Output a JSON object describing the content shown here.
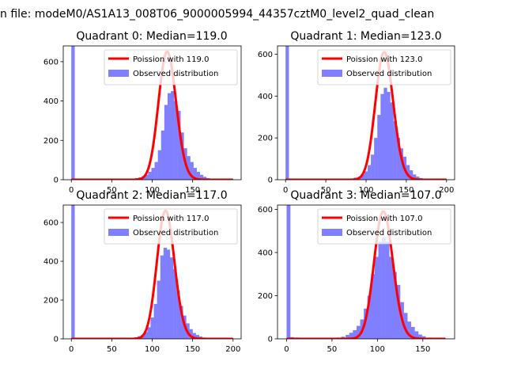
{
  "figure": {
    "suptitle": "n file: modeM0/AS1A13_008T06_9000005994_44357cztM0_level2_quad_clean"
  },
  "chart_data": [
    {
      "type": "bar",
      "title": "Quadrant 0: Median=119.0",
      "xlim": [
        -10,
        210
      ],
      "ylim": [
        0,
        680
      ],
      "xticks": [
        0,
        50,
        100,
        150
      ],
      "yticks": [
        0,
        200,
        400,
        600
      ],
      "grid": false,
      "legend_position": "top-right",
      "legend": [
        "Poission with 119.0",
        "Observed distribution"
      ],
      "colors": {
        "poisson": "#ff0000",
        "histogram": "#7f7fff"
      },
      "poisson_peak": 650,
      "series": [
        {
          "name": "Observed distribution",
          "type": "histogram",
          "bin_width": 4.2,
          "bins": [
            [
              0,
              680
            ],
            [
              55,
              2
            ],
            [
              65,
              3
            ],
            [
              75,
              5
            ],
            [
              79,
              8
            ],
            [
              83,
              12
            ],
            [
              87,
              18
            ],
            [
              91,
              25
            ],
            [
              95,
              40
            ],
            [
              99,
              60
            ],
            [
              103,
              90
            ],
            [
              107,
              150
            ],
            [
              111,
              250
            ],
            [
              115,
              380
            ],
            [
              119,
              440
            ],
            [
              123,
              450
            ],
            [
              127,
              400
            ],
            [
              131,
              350
            ],
            [
              135,
              240
            ],
            [
              139,
              160
            ],
            [
              143,
              120
            ],
            [
              147,
              90
            ],
            [
              151,
              60
            ],
            [
              155,
              40
            ],
            [
              159,
              25
            ],
            [
              163,
              15
            ],
            [
              167,
              8
            ],
            [
              175,
              3
            ],
            [
              183,
              1
            ],
            [
              195,
              1
            ]
          ]
        },
        {
          "name": "Poission with 119.0",
          "type": "line",
          "mean": 119.0,
          "x_range": [
            0,
            200
          ]
        }
      ]
    },
    {
      "type": "bar",
      "title": "Quadrant 1: Median=123.0",
      "xlim": [
        -10,
        210
      ],
      "ylim": [
        0,
        640
      ],
      "xticks": [
        0,
        50,
        100,
        150,
        200
      ],
      "yticks": [
        0,
        200,
        400,
        600
      ],
      "grid": false,
      "legend_position": "top-right",
      "legend": [
        "Poission with 123.0",
        "Observed distribution"
      ],
      "colors": {
        "poisson": "#ff0000",
        "histogram": "#7f7fff"
      },
      "poisson_peak": 610,
      "series": [
        {
          "name": "Observed distribution",
          "type": "histogram",
          "bin_width": 4.2,
          "bins": [
            [
              0,
              640
            ],
            [
              55,
              2
            ],
            [
              70,
              3
            ],
            [
              80,
              4
            ],
            [
              85,
              10
            ],
            [
              90,
              15
            ],
            [
              94,
              25
            ],
            [
              98,
              40
            ],
            [
              102,
              70
            ],
            [
              106,
              120
            ],
            [
              110,
              200
            ],
            [
              114,
              310
            ],
            [
              118,
              410
            ],
            [
              122,
              440
            ],
            [
              126,
              420
            ],
            [
              130,
              370
            ],
            [
              134,
              280
            ],
            [
              138,
              200
            ],
            [
              142,
              150
            ],
            [
              146,
              110
            ],
            [
              150,
              70
            ],
            [
              154,
              45
            ],
            [
              158,
              25
            ],
            [
              162,
              15
            ],
            [
              166,
              8
            ],
            [
              170,
              5
            ],
            [
              178,
              2
            ],
            [
              185,
              1
            ],
            [
              195,
              1
            ]
          ]
        },
        {
          "name": "Poission with 123.0",
          "type": "line",
          "mean": 123.0,
          "x_range": [
            0,
            200
          ]
        }
      ]
    },
    {
      "type": "bar",
      "title": "Quadrant 2: Median=117.0",
      "xlim": [
        -10,
        210
      ],
      "ylim": [
        0,
        690
      ],
      "xticks": [
        0,
        50,
        100,
        150,
        200
      ],
      "yticks": [
        0,
        200,
        400,
        600
      ],
      "grid": false,
      "legend_position": "top-right",
      "legend": [
        "Poission with 117.0",
        "Observed distribution"
      ],
      "colors": {
        "poisson": "#ff0000",
        "histogram": "#7f7fff"
      },
      "poisson_peak": 660,
      "series": [
        {
          "name": "Observed distribution",
          "type": "histogram",
          "bin_width": 4.2,
          "bins": [
            [
              0,
              690
            ],
            [
              58,
              2
            ],
            [
              66,
              3
            ],
            [
              74,
              5
            ],
            [
              78,
              8
            ],
            [
              82,
              14
            ],
            [
              86,
              20
            ],
            [
              90,
              35
            ],
            [
              94,
              60
            ],
            [
              98,
              110
            ],
            [
              102,
              180
            ],
            [
              106,
              300
            ],
            [
              110,
              430
            ],
            [
              114,
              470
            ],
            [
              118,
              460
            ],
            [
              122,
              420
            ],
            [
              126,
              360
            ],
            [
              130,
              250
            ],
            [
              134,
              170
            ],
            [
              138,
              120
            ],
            [
              142,
              80
            ],
            [
              146,
              50
            ],
            [
              150,
              30
            ],
            [
              154,
              20
            ],
            [
              158,
              12
            ],
            [
              162,
              7
            ],
            [
              168,
              4
            ],
            [
              176,
              2
            ],
            [
              190,
              1
            ]
          ]
        },
        {
          "name": "Poission with 117.0",
          "type": "line",
          "mean": 117.0,
          "x_range": [
            0,
            200
          ]
        }
      ]
    },
    {
      "type": "bar",
      "title": "Quadrant 3: Median=107.0",
      "xlim": [
        -10,
        185
      ],
      "ylim": [
        0,
        620
      ],
      "xticks": [
        0,
        50,
        100,
        150
      ],
      "yticks": [
        0,
        200,
        400,
        600
      ],
      "grid": false,
      "legend_position": "top-right",
      "legend": [
        "Poission with 107.0",
        "Observed distribution"
      ],
      "colors": {
        "poisson": "#ff0000",
        "histogram": "#7f7fff"
      },
      "poisson_peak": 590,
      "series": [
        {
          "name": "Observed distribution",
          "type": "histogram",
          "bin_width": 4.2,
          "bins": [
            [
              0,
              620
            ],
            [
              4,
              8
            ],
            [
              10,
              6
            ],
            [
              48,
              4
            ],
            [
              55,
              6
            ],
            [
              60,
              10
            ],
            [
              65,
              18
            ],
            [
              69,
              28
            ],
            [
              73,
              40
            ],
            [
              77,
              60
            ],
            [
              81,
              90
            ],
            [
              85,
              140
            ],
            [
              89,
              200
            ],
            [
              93,
              300
            ],
            [
              97,
              380
            ],
            [
              101,
              450
            ],
            [
              105,
              470
            ],
            [
              109,
              450
            ],
            [
              113,
              380
            ],
            [
              117,
              310
            ],
            [
              121,
              250
            ],
            [
              125,
              170
            ],
            [
              129,
              120
            ],
            [
              133,
              80
            ],
            [
              137,
              55
            ],
            [
              141,
              35
            ],
            [
              145,
              20
            ],
            [
              149,
              12
            ],
            [
              155,
              6
            ],
            [
              162,
              3
            ]
          ]
        },
        {
          "name": "Poission with 107.0",
          "type": "line",
          "mean": 107.0,
          "x_range": [
            0,
            175
          ]
        }
      ]
    }
  ]
}
